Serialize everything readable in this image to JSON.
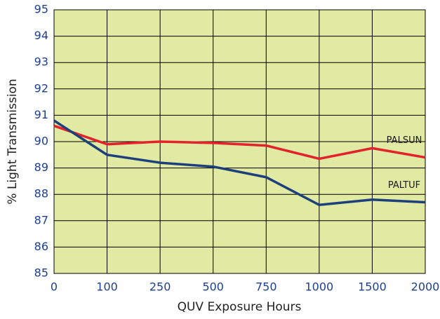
{
  "chart_data": {
    "type": "line",
    "x_label": "QUV Exposure Hours",
    "y_label": "% Light Transmission",
    "categories": [
      "0",
      "100",
      "250",
      "500",
      "750",
      "1000",
      "1500",
      "2000"
    ],
    "series": [
      {
        "name": "PALSUN",
        "color": "#e3222b",
        "values": [
          90.6,
          89.9,
          90.0,
          89.95,
          89.85,
          89.35,
          89.75,
          89.4
        ]
      },
      {
        "name": "PALTUF",
        "color": "#1d3f7c",
        "values": [
          90.8,
          89.5,
          89.2,
          89.05,
          88.65,
          87.6,
          87.8,
          87.7
        ]
      }
    ],
    "ylim": [
      85,
      95
    ],
    "yticks": [
      85,
      86,
      87,
      88,
      89,
      90,
      91,
      92,
      93,
      94,
      95
    ],
    "grid": true,
    "plot_background": "#e0eaa3"
  }
}
